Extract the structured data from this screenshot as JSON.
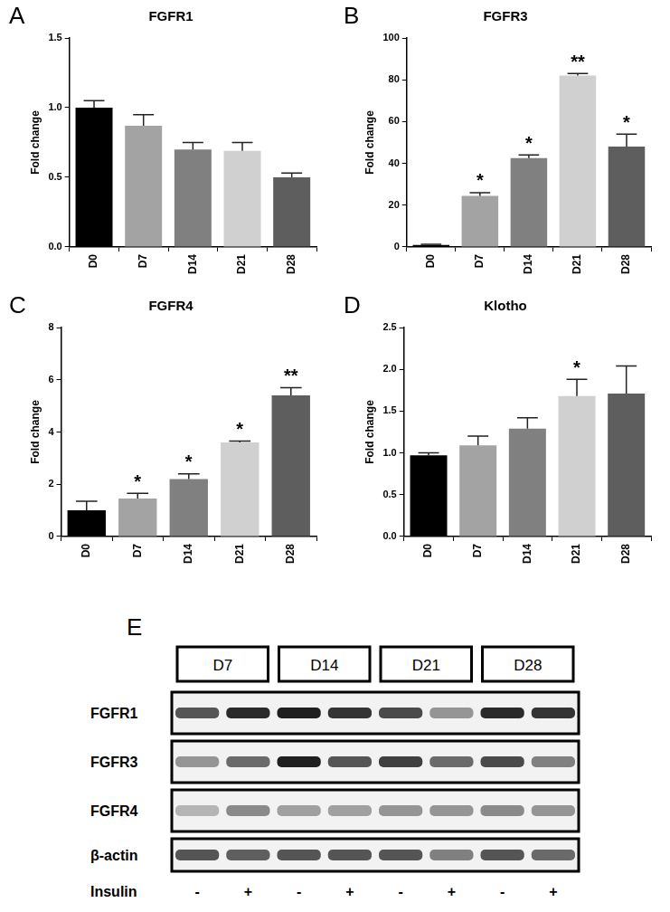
{
  "chart_data": [
    {
      "panel": "A",
      "type": "bar",
      "title": "FGFR1",
      "y_label": "Fold change",
      "categories": [
        "D0",
        "D7",
        "D14",
        "D21",
        "D28"
      ],
      "values": [
        1.0,
        0.87,
        0.7,
        0.69,
        0.5
      ],
      "errors": [
        0.05,
        0.08,
        0.05,
        0.06,
        0.03
      ],
      "annotations": [
        null,
        null,
        null,
        null,
        null
      ],
      "colors": [
        "#000000",
        "#a3a3a3",
        "#808080",
        "#d0d0d0",
        "#5e5e5e"
      ],
      "ylim": [
        0,
        1.5
      ],
      "yticks": [
        {
          "value": 0,
          "label": "0.0"
        },
        {
          "value": 0.5,
          "label": "0.5"
        },
        {
          "value": 1,
          "label": "1.0"
        },
        {
          "value": 1.5,
          "label": "1.5"
        }
      ],
      "grid": false
    },
    {
      "panel": "B",
      "type": "bar",
      "title": "FGFR3",
      "y_label": "Fold change",
      "categories": [
        "D0",
        "D7",
        "D14",
        "D21",
        "D28"
      ],
      "values": [
        1,
        24.5,
        42.5,
        82,
        48
      ],
      "errors": [
        0.3,
        1.5,
        1.5,
        1,
        6
      ],
      "annotations": [
        null,
        "*",
        "*",
        "**",
        "*"
      ],
      "colors": [
        "#000000",
        "#a3a3a3",
        "#808080",
        "#d0d0d0",
        "#5e5e5e"
      ],
      "ylim": [
        0,
        100
      ],
      "yticks": [
        0,
        20,
        40,
        60,
        80,
        100
      ],
      "grid": false
    },
    {
      "panel": "C",
      "type": "bar",
      "title": "FGFR4",
      "y_label": "Fold change",
      "categories": [
        "D0",
        "D7",
        "D14",
        "D21",
        "D28"
      ],
      "values": [
        1.0,
        1.45,
        2.2,
        3.6,
        5.4
      ],
      "errors": [
        0.35,
        0.2,
        0.2,
        0.05,
        0.3
      ],
      "annotations": [
        null,
        "*",
        "*",
        "*",
        "**"
      ],
      "colors": [
        "#000000",
        "#a3a3a3",
        "#808080",
        "#d0d0d0",
        "#5e5e5e"
      ],
      "ylim": [
        0,
        8
      ],
      "yticks": [
        0,
        2,
        4,
        6,
        8
      ],
      "grid": false
    },
    {
      "panel": "D",
      "type": "bar",
      "title": "Klotho",
      "y_label": "Fold change",
      "categories": [
        "D0",
        "D7",
        "D14",
        "D21",
        "D28"
      ],
      "values": [
        0.97,
        1.09,
        1.29,
        1.68,
        1.71
      ],
      "errors": [
        0.03,
        0.11,
        0.13,
        0.2,
        0.33
      ],
      "annotations": [
        null,
        null,
        null,
        "*",
        null
      ],
      "colors": [
        "#000000",
        "#a3a3a3",
        "#808080",
        "#d0d0d0",
        "#5e5e5e"
      ],
      "ylim": [
        0,
        2.5
      ],
      "yticks": [
        {
          "value": 0,
          "label": "0.0"
        },
        {
          "value": 0.5,
          "label": "0.5"
        },
        {
          "value": 1,
          "label": "1.0"
        },
        {
          "value": 1.5,
          "label": "1.5"
        },
        {
          "value": 2,
          "label": "2.0"
        },
        {
          "value": 2.5,
          "label": "2.5"
        }
      ],
      "grid": false
    }
  ],
  "blot": {
    "panel": "E",
    "groups": [
      "D7",
      "D14",
      "D21",
      "D28"
    ],
    "rows": [
      {
        "label": "FGFR1",
        "intensities": [
          0.7,
          0.9,
          0.95,
          0.85,
          0.75,
          0.4,
          0.9,
          0.85
        ]
      },
      {
        "label": "FGFR3",
        "intensities": [
          0.4,
          0.6,
          0.95,
          0.7,
          0.8,
          0.6,
          0.75,
          0.5
        ]
      },
      {
        "label": "FGFR4",
        "intensities": [
          0.25,
          0.45,
          0.35,
          0.35,
          0.4,
          0.4,
          0.45,
          0.4
        ]
      },
      {
        "label": "β-actin",
        "intensities": [
          0.7,
          0.65,
          0.7,
          0.7,
          0.7,
          0.5,
          0.7,
          0.6
        ]
      }
    ],
    "treatment": {
      "label": "Insulin",
      "lanes": [
        "-",
        "+",
        "-",
        "+",
        "-",
        "+",
        "-",
        "+"
      ]
    }
  }
}
